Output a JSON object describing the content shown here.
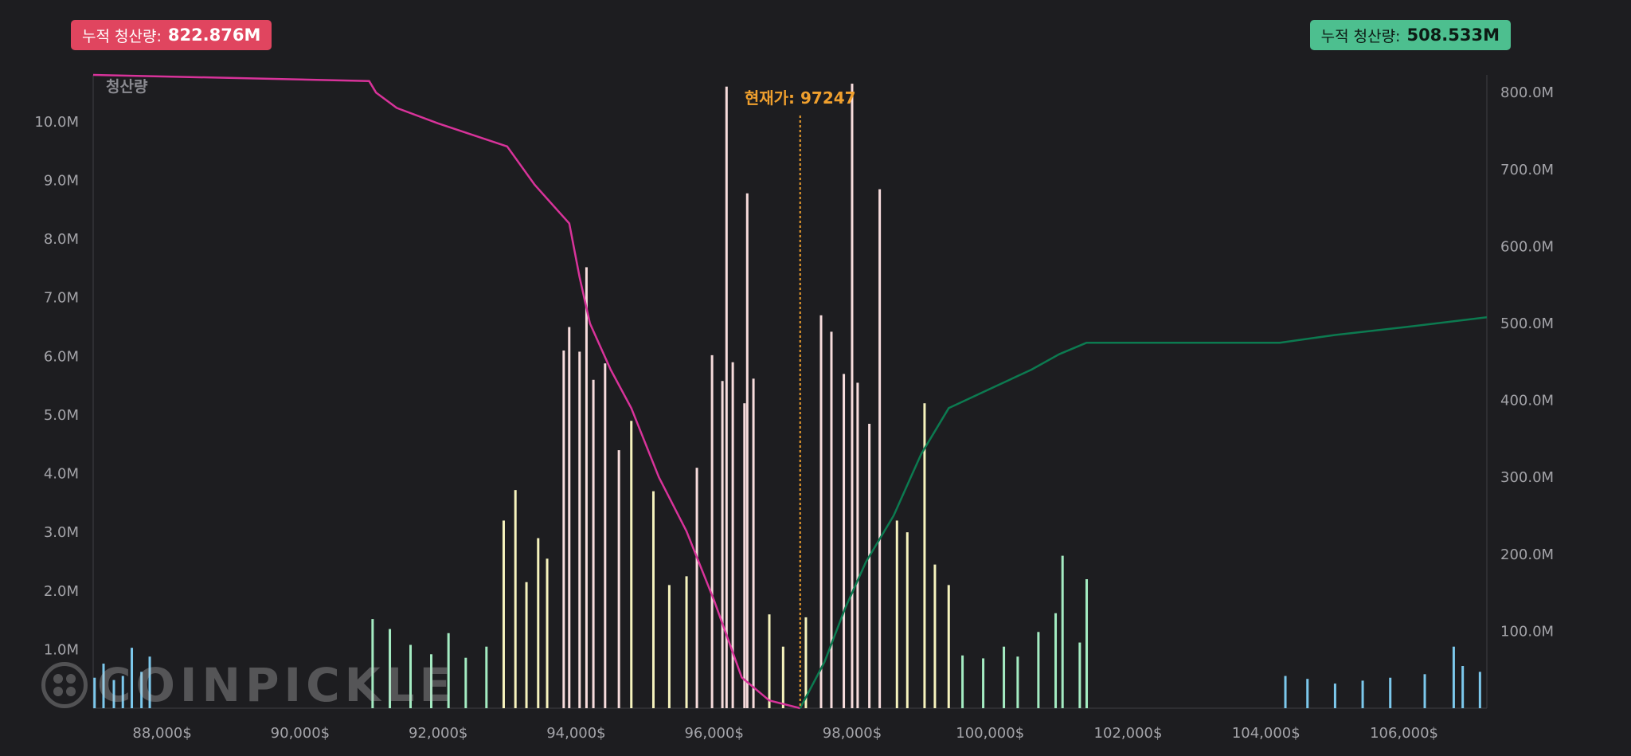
{
  "badges": {
    "left": {
      "label": "누적 청산량:",
      "value": "822.876M",
      "color": "#e0455f"
    },
    "right": {
      "label": "누적 청산량:",
      "value": "508.533M",
      "color": "#4dbf8f"
    }
  },
  "watermark": "COINPICKLE",
  "chart_data": {
    "type": "bar",
    "ylabel": "청산량",
    "current_price_label": "현재가: 97247",
    "current_price": 97247,
    "xlim": [
      87000,
      107200
    ],
    "ylim_left": [
      0,
      10.8
    ],
    "ylim_right": [
      0,
      823
    ],
    "x_ticks": [
      88000,
      90000,
      92000,
      94000,
      96000,
      98000,
      100000,
      102000,
      104000,
      106000
    ],
    "x_tick_labels": [
      "88,000$",
      "90,000$",
      "92,000$",
      "94,000$",
      "96,000$",
      "98,000$",
      "100,000$",
      "102,000$",
      "104,000$",
      "106,000$"
    ],
    "y_left_ticks": [
      1,
      2,
      3,
      4,
      5,
      6,
      7,
      8,
      9,
      10
    ],
    "y_left_tick_labels": [
      "1.0M",
      "2.0M",
      "3.0M",
      "4.0M",
      "5.0M",
      "6.0M",
      "7.0M",
      "8.0M",
      "9.0M",
      "10.0M"
    ],
    "y_right_ticks": [
      100,
      200,
      300,
      400,
      500,
      600,
      700,
      800
    ],
    "y_right_tick_labels": [
      "100.0M",
      "200.0M",
      "300.0M",
      "400.0M",
      "500.0M",
      "600.0M",
      "700.0M",
      "800.0M"
    ],
    "colors": {
      "background": "#1d1d20",
      "axis": "#3e3e44",
      "tick_text": "#a3a3a8",
      "bar_blue": "#7cc8ec",
      "bar_green": "#a4ecc2",
      "bar_yellow": "#f6f3bd",
      "bar_pink": "#f7dcdc",
      "long_cum_line": "#d8339a",
      "short_cum_line": "#0c7a50",
      "current_price": "#f0a02e"
    },
    "long_cumulative": {
      "name": "누적 청산량",
      "x": [
        87000,
        91000,
        91100,
        91400,
        92000,
        93000,
        93400,
        93700,
        93900,
        94050,
        94200,
        94500,
        94800,
        95200,
        95600,
        96000,
        96400,
        96800,
        97247
      ],
      "y": [
        823,
        815,
        800,
        780,
        760,
        730,
        680,
        650,
        630,
        560,
        500,
        440,
        390,
        300,
        230,
        140,
        40,
        10,
        0
      ]
    },
    "short_cumulative": {
      "name": "누적 청산량",
      "x": [
        97247,
        97600,
        97900,
        98200,
        98600,
        99000,
        99400,
        100000,
        100600,
        101000,
        101400,
        102000,
        104200,
        105000,
        106000,
        107200
      ],
      "y": [
        0,
        60,
        130,
        190,
        250,
        330,
        390,
        415,
        440,
        460,
        475,
        475,
        475,
        485,
        495,
        508
      ]
    },
    "bar_series": [
      {
        "x": [
          87020,
          87150,
          87300,
          87430,
          87560,
          87700,
          87820
        ],
        "y": [
          0.52,
          0.76,
          0.48,
          0.55,
          1.03,
          0.62,
          0.88
        ],
        "color": "#7cc8ec"
      },
      {
        "x": [
          91050,
          91300,
          91600,
          91900,
          92150,
          92400,
          92700
        ],
        "y": [
          1.52,
          1.35,
          1.08,
          0.92,
          1.28,
          0.86,
          1.05
        ],
        "color": "#a4ecc2"
      },
      {
        "x": [
          92950,
          93120,
          93280,
          93450,
          93580
        ],
        "y": [
          3.2,
          3.72,
          2.15,
          2.9,
          2.55
        ],
        "color": "#f6f3bd"
      },
      {
        "x": [
          93820,
          93900,
          94050,
          94150,
          94250,
          94420,
          94620
        ],
        "y": [
          6.1,
          6.5,
          6.08,
          7.52,
          5.6,
          5.88,
          4.4
        ],
        "color": "#f7dcdc"
      },
      {
        "x": [
          94800,
          95120,
          95350,
          95600
        ],
        "y": [
          4.9,
          3.7,
          2.1,
          2.25
        ],
        "color": "#f6f3bd"
      },
      {
        "x": [
          95750,
          95970,
          96120,
          96180,
          96270,
          96440,
          96480,
          96570
        ],
        "y": [
          4.1,
          6.02,
          5.58,
          10.6,
          5.9,
          5.2,
          8.78,
          5.62
        ],
        "color": "#f7dcdc"
      },
      {
        "x": [
          96800,
          97000,
          97330
        ],
        "y": [
          1.6,
          1.05,
          1.55
        ],
        "color": "#f6f3bd"
      },
      {
        "x": [
          97550,
          97700,
          97880,
          98000,
          98080,
          98250,
          98400
        ],
        "y": [
          6.7,
          6.42,
          5.7,
          10.65,
          5.55,
          4.85,
          8.85
        ],
        "color": "#f7dcdc"
      },
      {
        "x": [
          98650,
          98800,
          99050,
          99200,
          99400
        ],
        "y": [
          3.2,
          3.0,
          5.2,
          2.45,
          2.1
        ],
        "color": "#f6f3bd"
      },
      {
        "x": [
          99600,
          99900,
          100200,
          100400,
          100700,
          100950,
          101050,
          101300,
          101400
        ],
        "y": [
          0.9,
          0.85,
          1.05,
          0.88,
          1.3,
          1.62,
          2.6,
          1.12,
          2.2
        ],
        "color": "#a4ecc2"
      },
      {
        "x": [
          104280,
          104600,
          105000,
          105400,
          105800,
          106300,
          106720,
          106850,
          107100
        ],
        "y": [
          0.55,
          0.5,
          0.42,
          0.47,
          0.52,
          0.58,
          1.05,
          0.72,
          0.62
        ],
        "color": "#7cc8ec"
      }
    ]
  }
}
